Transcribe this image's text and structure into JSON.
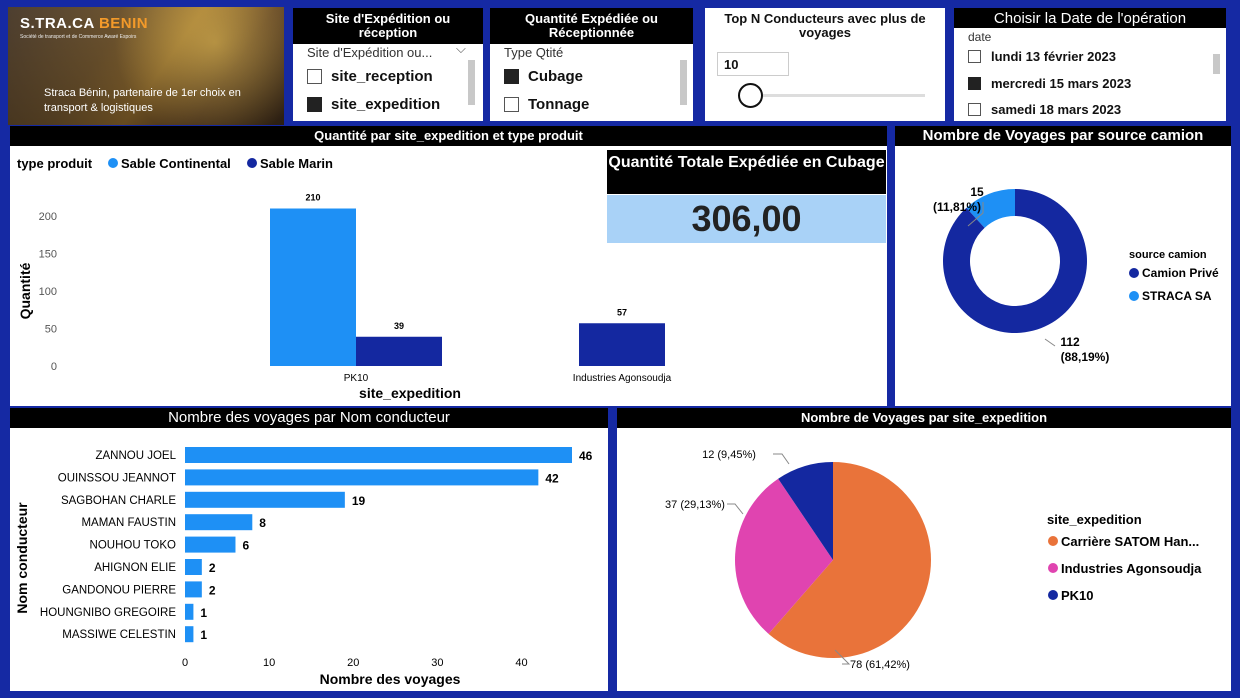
{
  "logo": {
    "brand_prefix": "S.TRA.CA",
    "brand_suffix": "BENIN",
    "subtitle": "Société de transport et de Commerce Awaré Espoirs",
    "tagline": "Straca Bénin, partenaire de 1er choix en transport & logistiques"
  },
  "slicer_site": {
    "title": "Site d'Expédition ou réception",
    "header": "Site d'Expédition ou...",
    "options": [
      {
        "label": "site_reception",
        "checked": false
      },
      {
        "label": "site_expedition",
        "checked": true
      }
    ]
  },
  "slicer_qty": {
    "title": "Quantité Expédiée ou Réceptionnée",
    "header": "Type Qtité",
    "options": [
      {
        "label": "Cubage",
        "checked": true
      },
      {
        "label": "Tonnage",
        "checked": false
      }
    ]
  },
  "slicer_topn": {
    "title": "Top N Conducteurs avec plus de voyages",
    "value": "10"
  },
  "slicer_date": {
    "title": "Choisir la Date de l'opération",
    "header": "date",
    "options": [
      {
        "label": "lundi 13 février 2023",
        "checked": false
      },
      {
        "label": "mercredi 15 mars 2023",
        "checked": true
      },
      {
        "label": "samedi 18 mars 2023",
        "checked": false
      }
    ]
  },
  "kpi": {
    "title": "Quantité Totale Expédiée en Cubage",
    "value": "306,00"
  },
  "colors": {
    "light_blue": "#1e90f5",
    "dark_blue": "#1428a0",
    "orange": "#e9733a",
    "pink": "#e044b0",
    "kpi_bg": "#a9d2f7"
  },
  "chart_data": [
    {
      "type": "bar",
      "title": "Quantité par site_expedition et type produit",
      "legend_title": "type produit",
      "legend_position": "top-left",
      "categories": [
        "PK10",
        "Industries Agonsoudja"
      ],
      "series": [
        {
          "name": "Sable Continental",
          "values": [
            210,
            null
          ]
        },
        {
          "name": "Sable Marin",
          "values": [
            39,
            57
          ]
        }
      ],
      "data_labels": {
        "pk10_cont": "210",
        "pk10_marin": "39",
        "ind_marin": "57"
      },
      "xlabel": "site_expedition",
      "ylabel": "Quantité",
      "yticks": [
        "0",
        "50",
        "100",
        "150",
        "200"
      ],
      "ylim": [
        0,
        230
      ],
      "grid": false
    },
    {
      "type": "pie",
      "donut": true,
      "title": "Nombre de Voyages par source camion",
      "legend_title": "source camion",
      "legend_position": "right",
      "slices": [
        {
          "name": "Camion Privé",
          "value": 112,
          "label_value": "112",
          "label_pct": "(88,19%)"
        },
        {
          "name": "STRACA SA",
          "value": 15,
          "label_value": "15",
          "label_pct": "(11,81%)"
        }
      ]
    },
    {
      "type": "bar",
      "orientation": "horizontal",
      "title": "Nombre des voyages par Nom conducteur",
      "categories": [
        "ZANNOU JOEL",
        "OUINSSOU JEANNOT",
        "SAGBOHAN CHARLE",
        "MAMAN FAUSTIN",
        "NOUHOU TOKO",
        "AHIGNON ELIE",
        "GANDONOU PIERRE",
        "HOUNGNIBO GREGOIRE",
        "MASSIWE CELESTIN"
      ],
      "values": [
        46,
        42,
        19,
        8,
        6,
        2,
        2,
        1,
        1
      ],
      "value_labels": [
        "46",
        "42",
        "19",
        "8",
        "6",
        "2",
        "2",
        "1",
        "1"
      ],
      "xlabel": "Nombre des voyages",
      "ylabel": "Nom conducteur",
      "xticks": [
        "0",
        "10",
        "20",
        "30",
        "40"
      ],
      "xlim": [
        0,
        47
      ],
      "grid": false
    },
    {
      "type": "pie",
      "title": "Nombre de Voyages par site_expedition",
      "legend_title": "site_expedition",
      "legend_position": "right",
      "slices": [
        {
          "name": "Carrière SATOM Han...",
          "value": 78,
          "label": "78 (61,42%)"
        },
        {
          "name": "Industries Agonsoudja",
          "value": 37,
          "label": "37 (29,13%)"
        },
        {
          "name": "PK10",
          "value": 12,
          "label": "12 (9,45%)"
        }
      ]
    }
  ]
}
